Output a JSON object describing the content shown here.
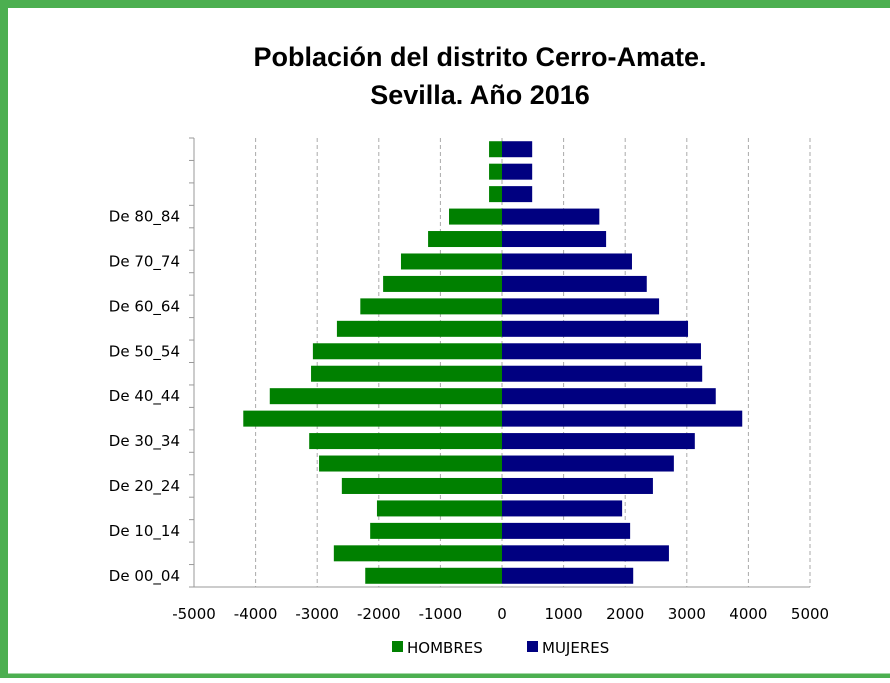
{
  "chart_data": {
    "type": "pyramid",
    "title": [
      "Población del distrito Cerro-Amate.",
      "Sevilla. Año 2016"
    ],
    "categories": [
      "De 00_04",
      null,
      "De 10_14",
      null,
      "De 20_24",
      null,
      "De 30_34",
      null,
      "De 40_44",
      null,
      "De 50_54",
      null,
      "De 60_64",
      null,
      "De 70_74",
      null,
      "De 80_84",
      null,
      null,
      null
    ],
    "series": [
      {
        "name": "HOMBRES",
        "color": "#008000",
        "values": [
          -2220,
          -2730,
          -2140,
          -2030,
          -2600,
          -2970,
          -3130,
          -4200,
          -3770,
          -3100,
          -3070,
          -2680,
          -2300,
          -1930,
          -1640,
          -1200,
          -860,
          -210,
          -210,
          -210
        ]
      },
      {
        "name": "MUJERES",
        "color": "#000080",
        "values": [
          2130,
          2710,
          2080,
          1950,
          2450,
          2790,
          3130,
          3900,
          3470,
          3250,
          3230,
          3020,
          2550,
          2350,
          2110,
          1690,
          1580,
          490,
          490,
          490
        ]
      }
    ],
    "xlim": [
      -5000,
      5000
    ],
    "xticks": [
      -5000,
      -4000,
      -3000,
      -2000,
      -1000,
      0,
      1000,
      2000,
      3000,
      4000,
      5000
    ],
    "grid": true,
    "legend": "bottom"
  }
}
